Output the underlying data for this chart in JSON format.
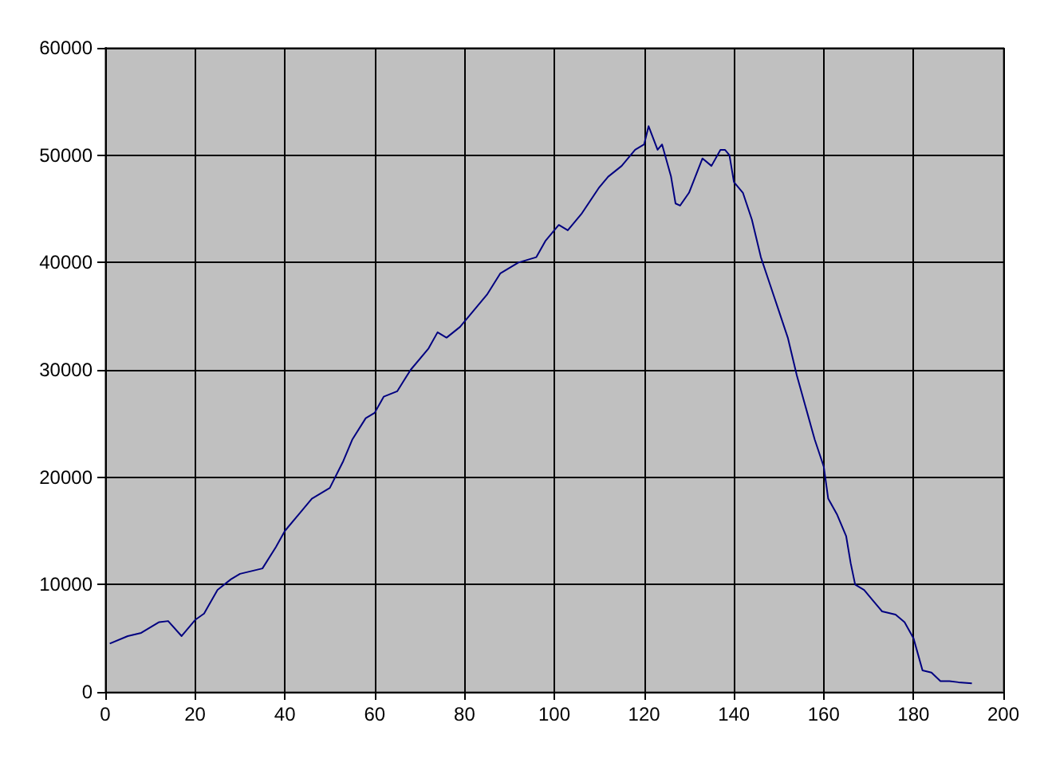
{
  "chart_data": {
    "type": "line",
    "line_style": "solid",
    "marker": "none",
    "grid": true,
    "xlim": [
      0,
      200
    ],
    "xticks": [
      0,
      20,
      40,
      60,
      80,
      100,
      120,
      140,
      160,
      180,
      200
    ],
    "ylim": [
      0,
      60000
    ],
    "yticks": [
      0,
      10000,
      20000,
      30000,
      40000,
      50000,
      60000
    ],
    "series": [
      {
        "color": "#000080",
        "x": [
          1,
          5,
          8,
          12,
          14,
          17,
          20,
          22,
          25,
          28,
          30,
          35,
          38,
          40,
          43,
          46,
          50,
          53,
          55,
          58,
          60,
          62,
          65,
          68,
          72,
          74,
          76,
          79,
          82,
          85,
          88,
          92,
          96,
          98,
          101,
          103,
          106,
          110,
          112,
          115,
          118,
          120,
          121,
          123,
          124,
          126,
          127,
          128,
          130,
          133,
          135,
          137,
          138,
          139,
          140,
          142,
          144,
          146,
          148,
          150,
          152,
          154,
          156,
          158,
          160,
          161,
          163,
          165,
          166,
          167,
          169,
          171,
          173,
          176,
          178,
          180,
          181,
          182,
          184,
          186,
          188,
          190,
          193
        ],
        "values": [
          4500,
          5200,
          5500,
          6500,
          6600,
          5200,
          6700,
          7300,
          9500,
          10500,
          11000,
          11500,
          13500,
          15000,
          16500,
          18000,
          19000,
          21500,
          23500,
          25500,
          26000,
          27500,
          28000,
          30000,
          32000,
          33500,
          33000,
          34000,
          35500,
          37000,
          39000,
          40000,
          40500,
          42000,
          43500,
          43000,
          44500,
          47000,
          48000,
          49000,
          50500,
          51000,
          52700,
          50500,
          51000,
          48000,
          45500,
          45300,
          46500,
          49700,
          49000,
          50500,
          50500,
          50000,
          47500,
          46500,
          44000,
          40500,
          38000,
          35500,
          33000,
          29500,
          26500,
          23500,
          21000,
          18000,
          16500,
          14500,
          12000,
          10000,
          9500,
          8500,
          7500,
          7200,
          6500,
          5000,
          3500,
          2000,
          1800,
          1000,
          1000,
          900,
          800
        ]
      }
    ]
  }
}
